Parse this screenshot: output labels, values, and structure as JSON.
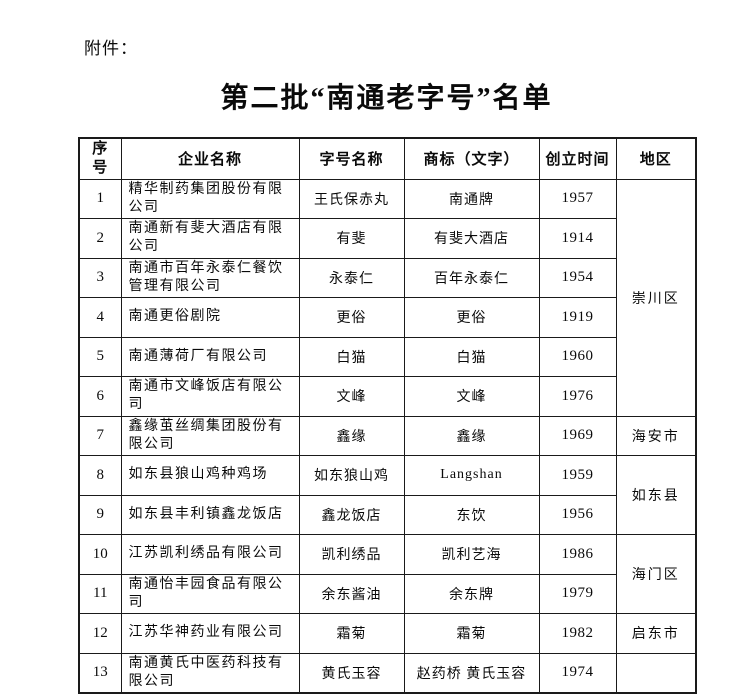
{
  "document": {
    "attachment_label": "附件：",
    "title": "第二批“南通老字号”名单"
  },
  "table": {
    "headers": {
      "no": "序号",
      "company": "企业名称",
      "brand": "字号名称",
      "trademark": "商标（文字）",
      "year": "创立时间",
      "region": "地区"
    },
    "rows": [
      {
        "no": "1",
        "company": "精华制药集团股份有限公司",
        "brand": "王氏保赤丸",
        "trademark": "南通牌",
        "year": "1957",
        "region": "崇川区",
        "region_span": 6
      },
      {
        "no": "2",
        "company": "南通新有斐大酒店有限公司",
        "brand": "有斐",
        "trademark": "有斐大酒店",
        "year": "1914"
      },
      {
        "no": "3",
        "company": "南通市百年永泰仁餐饮管理有限公司",
        "brand": "永泰仁",
        "trademark": "百年永泰仁",
        "year": "1954"
      },
      {
        "no": "4",
        "company": "南通更俗剧院",
        "brand": "更俗",
        "trademark": "更俗",
        "year": "1919"
      },
      {
        "no": "5",
        "company": "南通薄荷厂有限公司",
        "brand": "白猫",
        "trademark": "白猫",
        "year": "1960"
      },
      {
        "no": "6",
        "company": "南通市文峰饭店有限公司",
        "brand": "文峰",
        "trademark": "文峰",
        "year": "1976"
      },
      {
        "no": "7",
        "company": "鑫缘茧丝绸集团股份有限公司",
        "brand": "鑫缘",
        "trademark": "鑫缘",
        "year": "1969",
        "region": "海安市",
        "region_span": 1
      },
      {
        "no": "8",
        "company": "如东县狼山鸡种鸡场",
        "brand": "如东狼山鸡",
        "trademark": "Langshan",
        "year": "1959",
        "region": "如东县",
        "region_span": 2
      },
      {
        "no": "9",
        "company": "如东县丰利镇鑫龙饭店",
        "brand": "鑫龙饭店",
        "trademark": "东饮",
        "year": "1956"
      },
      {
        "no": "10",
        "company": "江苏凯利绣品有限公司",
        "brand": "凯利绣品",
        "trademark": "凯利艺海",
        "year": "1986",
        "region": "海门区",
        "region_span": 2
      },
      {
        "no": "11",
        "company": "南通怡丰园食品有限公司",
        "brand": "余东酱油",
        "trademark": "余东牌",
        "year": "1979"
      },
      {
        "no": "12",
        "company": "江苏华神药业有限公司",
        "brand": "霜菊",
        "trademark": "霜菊",
        "year": "1982",
        "region": "启东市",
        "region_span": 1
      },
      {
        "no": "13",
        "company": "南通黄氏中医药科技有限公司",
        "brand": "黄氏玉容",
        "trademark": "赵药桥 黄氏玉容",
        "year": "1974",
        "region": "",
        "region_span": 1
      }
    ]
  }
}
